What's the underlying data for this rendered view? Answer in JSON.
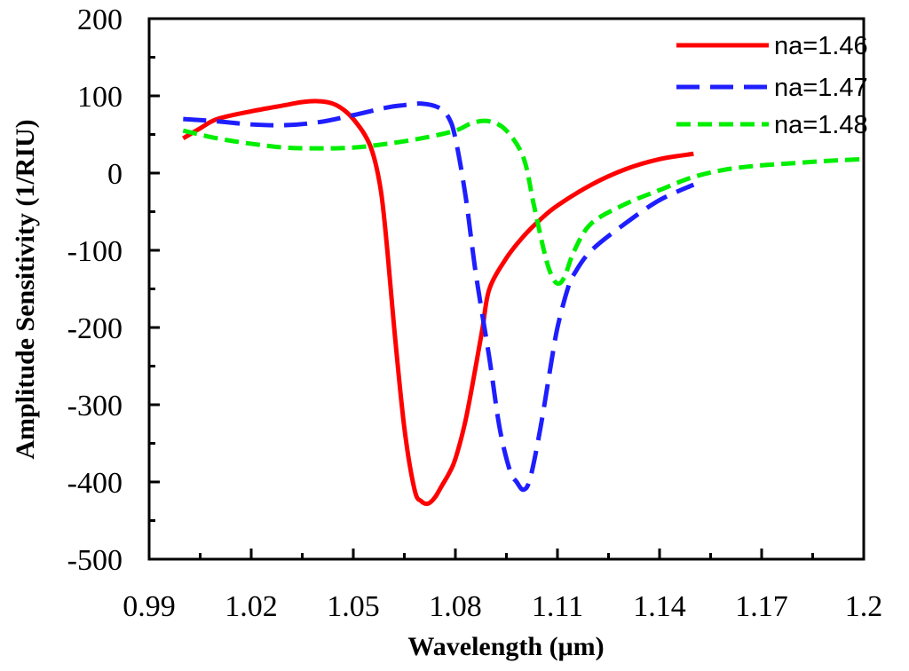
{
  "chart_data": {
    "type": "line",
    "xlabel": "Wavelength (μm)",
    "ylabel": "Amplitude Sensitivity (1/RIU)",
    "xlim": [
      0.99,
      1.2
    ],
    "ylim": [
      -500,
      200
    ],
    "xticks": [
      0.99,
      1.02,
      1.05,
      1.08,
      1.11,
      1.14,
      1.17,
      1.2
    ],
    "xtick_labels": [
      "0.99",
      "1.02",
      "1.05",
      "1.08",
      "1.11",
      "1.14",
      "1.17",
      "1.2"
    ],
    "yticks": [
      200,
      100,
      0,
      -100,
      -200,
      -300,
      -400,
      -500
    ],
    "ytick_labels": [
      "200",
      "100",
      "0",
      "-100",
      "-200",
      "-300",
      "-400",
      "-500"
    ],
    "legend_position": "top-right",
    "series": [
      {
        "name": "na=1.46",
        "color": "#ff0000",
        "dash": "solid",
        "x": [
          1.0,
          1.005,
          1.01,
          1.02,
          1.03,
          1.035,
          1.04,
          1.045,
          1.05,
          1.055,
          1.058,
          1.06,
          1.062,
          1.065,
          1.068,
          1.07,
          1.072,
          1.074,
          1.076,
          1.078,
          1.08,
          1.083,
          1.086,
          1.088,
          1.09,
          1.095,
          1.1,
          1.105,
          1.11,
          1.12,
          1.13,
          1.14,
          1.15
        ],
        "y": [
          45,
          58,
          70,
          80,
          88,
          92,
          93,
          88,
          70,
          35,
          -20,
          -100,
          -200,
          -330,
          -410,
          -425,
          -428,
          -420,
          -405,
          -390,
          -370,
          -320,
          -250,
          -200,
          -150,
          -110,
          -82,
          -60,
          -42,
          -15,
          5,
          18,
          25
        ]
      },
      {
        "name": "na=1.47",
        "color": "#1e1eff",
        "dash": "dashed",
        "x": [
          1.0,
          1.01,
          1.02,
          1.03,
          1.04,
          1.05,
          1.06,
          1.065,
          1.07,
          1.075,
          1.078,
          1.08,
          1.083,
          1.086,
          1.09,
          1.093,
          1.096,
          1.098,
          1.1,
          1.102,
          1.105,
          1.108,
          1.11,
          1.113,
          1.115,
          1.12,
          1.13,
          1.14,
          1.15
        ],
        "y": [
          70,
          67,
          63,
          62,
          66,
          75,
          85,
          88,
          90,
          85,
          72,
          45,
          -30,
          -130,
          -240,
          -330,
          -385,
          -400,
          -410,
          -395,
          -330,
          -250,
          -200,
          -150,
          -130,
          -100,
          -65,
          -35,
          -15
        ]
      },
      {
        "name": "na=1.48",
        "color": "#00ee00",
        "dash": "dashed",
        "x": [
          1.0,
          1.01,
          1.02,
          1.03,
          1.04,
          1.05,
          1.06,
          1.07,
          1.08,
          1.085,
          1.09,
          1.095,
          1.1,
          1.103,
          1.106,
          1.108,
          1.11,
          1.112,
          1.115,
          1.12,
          1.13,
          1.14,
          1.15,
          1.16,
          1.17,
          1.18,
          1.19,
          1.2
        ],
        "y": [
          55,
          45,
          38,
          33,
          32,
          33,
          38,
          45,
          55,
          65,
          67,
          55,
          20,
          -40,
          -100,
          -130,
          -143,
          -135,
          -100,
          -65,
          -40,
          -22,
          -5,
          5,
          10,
          13,
          16,
          18
        ]
      }
    ]
  }
}
